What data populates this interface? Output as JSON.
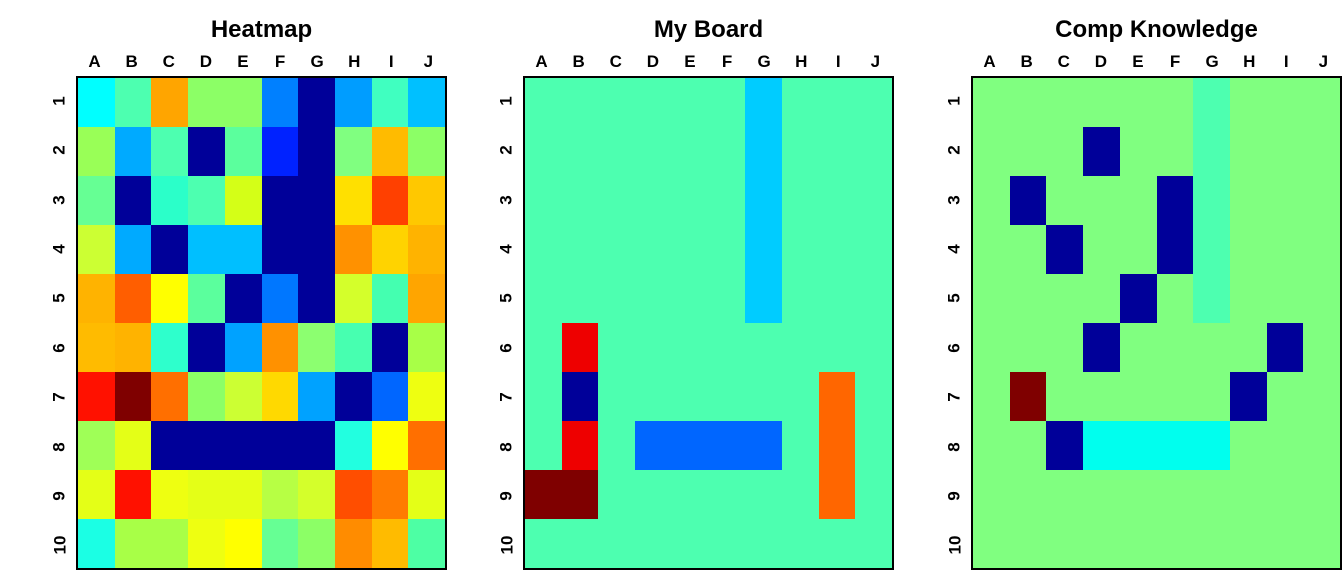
{
  "page": {
    "background": "#ffffff"
  },
  "chart_data": [
    {
      "type": "heatmap",
      "title": "Heatmap",
      "x_labels": [
        "A",
        "B",
        "C",
        "D",
        "E",
        "F",
        "G",
        "H",
        "I",
        "J"
      ],
      "y_labels": [
        "1",
        "2",
        "3",
        "4",
        "5",
        "6",
        "7",
        "8",
        "9",
        "10"
      ],
      "grid_lines": "off",
      "legend": "none",
      "cell_colors": [
        [
          "#00FFFF",
          "#4DFFB0",
          "#FFA500",
          "#8CFF66",
          "#8CFF66",
          "#0080FF",
          "#000099",
          "#009DFF",
          "#40FFC0",
          "#00C0FF"
        ],
        [
          "#99FF57",
          "#00AAFF",
          "#4DFFB0",
          "#000099",
          "#5BFF9D",
          "#0022FF",
          "#000099",
          "#80FF80",
          "#FFBB00",
          "#8CFF66"
        ],
        [
          "#66FF94",
          "#000099",
          "#2BFFC9",
          "#4DFFB0",
          "#D4FF17",
          "#000099",
          "#000099",
          "#FFE000",
          "#FF4000",
          "#FFC800"
        ],
        [
          "#CCFF33",
          "#00AAFF",
          "#000099",
          "#00BFFF",
          "#00BFFF",
          "#000099",
          "#000099",
          "#FF9100",
          "#FFD300",
          "#FFB300"
        ],
        [
          "#FFB300",
          "#FF5E00",
          "#FFFF00",
          "#5BFF9D",
          "#000099",
          "#0077FF",
          "#000099",
          "#D4FF2B",
          "#44FFB0",
          "#FFA500"
        ],
        [
          "#FFBB00",
          "#FFB300",
          "#2EFFCC",
          "#000099",
          "#00A2FF",
          "#FF9100",
          "#8CFF70",
          "#47FFB0",
          "#000099",
          "#A8FF47"
        ],
        [
          "#FF1100",
          "#7F0000",
          "#FF6F00",
          "#8CFF66",
          "#CCFF33",
          "#FFD900",
          "#00A2FF",
          "#000099",
          "#0066FF",
          "#EEFF11"
        ],
        [
          "#9FFF57",
          "#E4FF17",
          "#000099",
          "#000099",
          "#000099",
          "#000099",
          "#000099",
          "#22FFE0",
          "#FFFF00",
          "#FF6F00"
        ],
        [
          "#E4FF17",
          "#FF1100",
          "#EEFF11",
          "#E4FF17",
          "#E4FF17",
          "#B7FF44",
          "#D4FF2B",
          "#FF4E00",
          "#FF7B00",
          "#E4FF17"
        ],
        [
          "#1BFFE4",
          "#A8FF47",
          "#A8FF47",
          "#EEFF11",
          "#FFFF00",
          "#66FF94",
          "#8CFF66",
          "#FF8C00",
          "#FFBB00",
          "#4DFFA4"
        ]
      ]
    },
    {
      "type": "heatmap",
      "title": "My Board",
      "x_labels": [
        "A",
        "B",
        "C",
        "D",
        "E",
        "F",
        "G",
        "H",
        "I",
        "J"
      ],
      "y_labels": [
        "1",
        "2",
        "3",
        "4",
        "5",
        "6",
        "7",
        "8",
        "9",
        "10"
      ],
      "grid_lines": "off",
      "legend": "none",
      "background_color": "#4DFFB0",
      "cell_colors": [
        [
          "#4DFFB0",
          "#4DFFB0",
          "#4DFFB0",
          "#4DFFB0",
          "#4DFFB0",
          "#4DFFB0",
          "#00CCFF",
          "#4DFFB0",
          "#4DFFB0",
          "#4DFFB0"
        ],
        [
          "#4DFFB0",
          "#4DFFB0",
          "#4DFFB0",
          "#4DFFB0",
          "#4DFFB0",
          "#4DFFB0",
          "#00CCFF",
          "#4DFFB0",
          "#4DFFB0",
          "#4DFFB0"
        ],
        [
          "#4DFFB0",
          "#4DFFB0",
          "#4DFFB0",
          "#4DFFB0",
          "#4DFFB0",
          "#4DFFB0",
          "#00CCFF",
          "#4DFFB0",
          "#4DFFB0",
          "#4DFFB0"
        ],
        [
          "#4DFFB0",
          "#4DFFB0",
          "#4DFFB0",
          "#4DFFB0",
          "#4DFFB0",
          "#4DFFB0",
          "#00CCFF",
          "#4DFFB0",
          "#4DFFB0",
          "#4DFFB0"
        ],
        [
          "#4DFFB0",
          "#4DFFB0",
          "#4DFFB0",
          "#4DFFB0",
          "#4DFFB0",
          "#4DFFB0",
          "#00CCFF",
          "#4DFFB0",
          "#4DFFB0",
          "#4DFFB0"
        ],
        [
          "#4DFFB0",
          "#EE0000",
          "#4DFFB0",
          "#4DFFB0",
          "#4DFFB0",
          "#4DFFB0",
          "#4DFFB0",
          "#4DFFB0",
          "#4DFFB0",
          "#4DFFB0"
        ],
        [
          "#4DFFB0",
          "#000099",
          "#4DFFB0",
          "#4DFFB0",
          "#4DFFB0",
          "#4DFFB0",
          "#4DFFB0",
          "#4DFFB0",
          "#FF6600",
          "#4DFFB0"
        ],
        [
          "#4DFFB0",
          "#EE0000",
          "#4DFFB0",
          "#0066FF",
          "#0066FF",
          "#0066FF",
          "#0066FF",
          "#4DFFB0",
          "#FF6600",
          "#4DFFB0"
        ],
        [
          "#7F0000",
          "#7F0000",
          "#4DFFB0",
          "#4DFFB0",
          "#4DFFB0",
          "#4DFFB0",
          "#4DFFB0",
          "#4DFFB0",
          "#FF6600",
          "#4DFFB0"
        ],
        [
          "#4DFFB0",
          "#4DFFB0",
          "#4DFFB0",
          "#4DFFB0",
          "#4DFFB0",
          "#4DFFB0",
          "#4DFFB0",
          "#4DFFB0",
          "#4DFFB0",
          "#4DFFB0"
        ]
      ]
    },
    {
      "type": "heatmap",
      "title": "Comp Knowledge",
      "x_labels": [
        "A",
        "B",
        "C",
        "D",
        "E",
        "F",
        "G",
        "H",
        "I",
        "J"
      ],
      "y_labels": [
        "1",
        "2",
        "3",
        "4",
        "5",
        "6",
        "7",
        "8",
        "9",
        "10"
      ],
      "grid_lines": "off",
      "legend": "none",
      "background_color": "#80FF80",
      "cell_colors": [
        [
          "#80FF80",
          "#80FF80",
          "#80FF80",
          "#80FF80",
          "#80FF80",
          "#80FF80",
          "#4DFFB0",
          "#80FF80",
          "#80FF80",
          "#80FF80"
        ],
        [
          "#80FF80",
          "#80FF80",
          "#80FF80",
          "#000099",
          "#80FF80",
          "#80FF80",
          "#4DFFB0",
          "#80FF80",
          "#80FF80",
          "#80FF80"
        ],
        [
          "#80FF80",
          "#000099",
          "#80FF80",
          "#80FF80",
          "#80FF80",
          "#000099",
          "#4DFFB0",
          "#80FF80",
          "#80FF80",
          "#80FF80"
        ],
        [
          "#80FF80",
          "#80FF80",
          "#000099",
          "#80FF80",
          "#80FF80",
          "#000099",
          "#4DFFB0",
          "#80FF80",
          "#80FF80",
          "#80FF80"
        ],
        [
          "#80FF80",
          "#80FF80",
          "#80FF80",
          "#80FF80",
          "#000099",
          "#80FF80",
          "#4DFFB0",
          "#80FF80",
          "#80FF80",
          "#80FF80"
        ],
        [
          "#80FF80",
          "#80FF80",
          "#80FF80",
          "#000099",
          "#80FF80",
          "#80FF80",
          "#80FF80",
          "#80FF80",
          "#000099",
          "#80FF80"
        ],
        [
          "#80FF80",
          "#7F0000",
          "#80FF80",
          "#80FF80",
          "#80FF80",
          "#80FF80",
          "#80FF80",
          "#000099",
          "#80FF80",
          "#80FF80"
        ],
        [
          "#80FF80",
          "#80FF80",
          "#000099",
          "#00FFEE",
          "#00FFEE",
          "#00FFEE",
          "#00FFEE",
          "#80FF80",
          "#80FF80",
          "#80FF80"
        ],
        [
          "#80FF80",
          "#80FF80",
          "#80FF80",
          "#80FF80",
          "#80FF80",
          "#80FF80",
          "#80FF80",
          "#80FF80",
          "#80FF80",
          "#80FF80"
        ],
        [
          "#80FF80",
          "#80FF80",
          "#80FF80",
          "#80FF80",
          "#80FF80",
          "#80FF80",
          "#80FF80",
          "#80FF80",
          "#80FF80",
          "#80FF80"
        ]
      ]
    }
  ]
}
